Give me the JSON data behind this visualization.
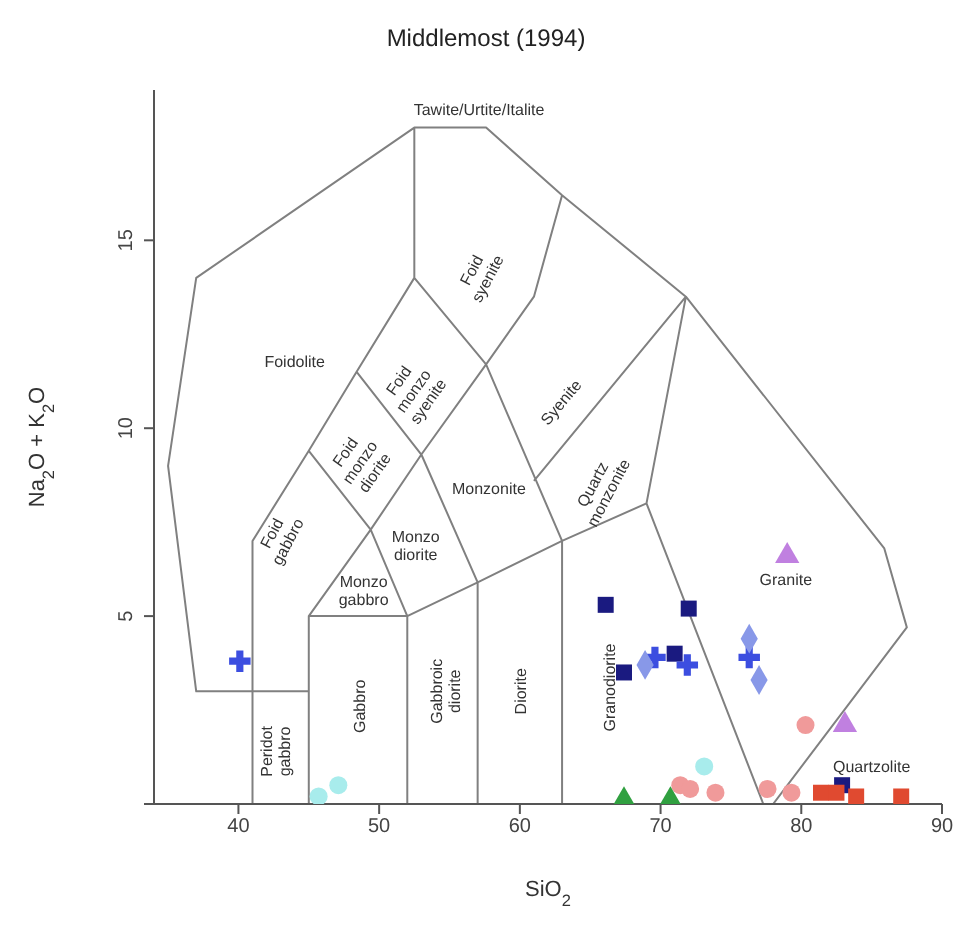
{
  "chart_data": {
    "type": "scatter",
    "title": "Middlemost (1994)",
    "xlabel": "SiO$_{2}$",
    "ylabel": "Na$_{2}$O + K$_{2}$O",
    "xlim": [
      34,
      90
    ],
    "xticks": [
      40,
      50,
      60,
      70,
      80,
      90
    ],
    "ylim": [
      0,
      19
    ],
    "yticks": [
      {
        "value": 0,
        "label": null
      },
      5,
      10,
      15
    ],
    "series": [
      {
        "type": "scatter",
        "marker": "square",
        "color": "#1a1a80",
        "x": [
          66.1,
          72,
          67.4,
          71,
          82.9
        ],
        "values": [
          5.3,
          5.2,
          3.5,
          4.0,
          0.5
        ]
      },
      {
        "type": "scatter",
        "marker": "cross",
        "color": "#3c4ee0",
        "x": [
          40.1,
          69.6,
          71.9,
          76.3
        ],
        "values": [
          3.8,
          3.9,
          3.7,
          3.9
        ]
      },
      {
        "type": "scatter",
        "marker": "diamond",
        "color": "#8898e8",
        "x": [
          68.9,
          76.3,
          77
        ],
        "values": [
          3.7,
          4.4,
          3.3
        ]
      },
      {
        "type": "scatter",
        "marker": "triangle",
        "color": "#c080e0",
        "x": [
          79,
          83.1
        ],
        "values": [
          6.6,
          2.1
        ]
      },
      {
        "type": "scatter",
        "marker": "circle",
        "color": "#f09a9a",
        "x": [
          80.3,
          71.4,
          72.1,
          73.9,
          77.6,
          79.3
        ],
        "values": [
          2.1,
          0.5,
          0.4,
          0.3,
          0.4,
          0.3
        ]
      },
      {
        "type": "scatter",
        "marker": "square",
        "color": "#e04a30",
        "x": [
          81.4,
          82.5,
          83.9,
          87.1
        ],
        "values": [
          0.3,
          0.3,
          0.2,
          0.2
        ]
      },
      {
        "type": "scatter",
        "marker": "triangle",
        "color": "#30a040",
        "x": [
          67.4,
          70.7
        ],
        "values": [
          0.1,
          0.1
        ]
      },
      {
        "type": "scatter",
        "marker": "circle",
        "color": "#a8ecec",
        "x": [
          73.1,
          47.1,
          45.7
        ],
        "values": [
          1.0,
          0.5,
          0.2
        ]
      },
      {
        "type": "line",
        "marker": "none",
        "color": "#808080",
        "x": [
          45,
          37,
          35,
          37,
          52.5,
          57.6,
          63,
          71.8,
          85.9,
          87.5,
          78,
          null,
          41,
          41,
          45,
          48.4,
          52.5,
          52.5,
          null,
          45,
          45,
          49.4,
          53,
          57.6,
          61,
          63,
          null,
          45,
          52,
          57,
          63,
          69,
          71.8,
          null,
          52,
          52,
          null,
          57,
          57,
          null,
          63,
          63,
          null,
          69,
          77.3,
          null,
          45,
          49.4,
          52,
          null,
          48.4,
          53,
          57,
          null,
          52.5,
          57.6,
          63,
          null,
          61,
          71.8
        ],
        "values": [
          3,
          3,
          9,
          14,
          18,
          18,
          16.2,
          13.5,
          6.8,
          4.7,
          0,
          null,
          0,
          7,
          9.4,
          11.5,
          14,
          18,
          null,
          0,
          5,
          7.3,
          9.3,
          11.7,
          13.5,
          16.2,
          null,
          5,
          5,
          5.9,
          7,
          8,
          13.5,
          null,
          0,
          5,
          null,
          0,
          5.9,
          null,
          0,
          7,
          null,
          8,
          0,
          null,
          9.4,
          7.3,
          5,
          null,
          11.5,
          9.3,
          5.9,
          null,
          14,
          11.7,
          7,
          null,
          8.6,
          13.5
        ]
      }
    ],
    "annotations": [
      "Tawite/Urtite/Italite",
      "Foidolite",
      "Foid\nsyenite",
      "Foid\nmonzo\nsyenite",
      "Foid\nmonzo\ndiorite",
      "Foid\ngabbro",
      "Syenite",
      "Monzonite",
      "Monzo\ndiorite",
      "Monzo\ngabbro",
      "Quartz\nmonzonite",
      "Peridot\ngabbro",
      "Gabbro",
      "Gabbroic\ndiorite",
      "Diorite",
      "Granodiorite",
      "Granite",
      "Quartzolite"
    ]
  }
}
